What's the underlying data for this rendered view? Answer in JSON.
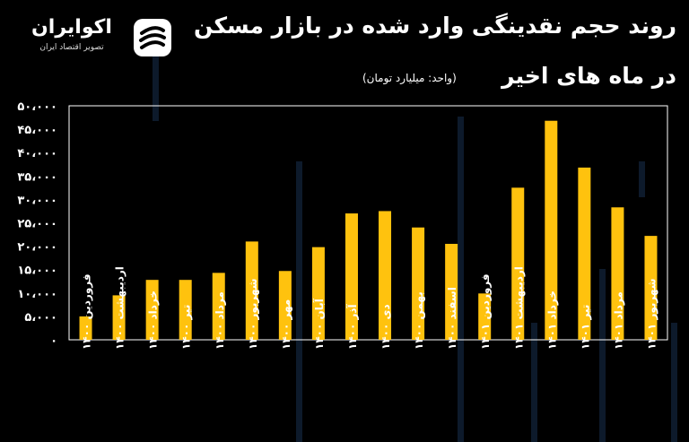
{
  "header": {
    "title_line1": "روند حجم نقدینگی وارد شده در بازار مسکن",
    "title_line2": "در ماه های اخیر",
    "unit_note": "(واحد: میلیارد تومان)"
  },
  "brand": {
    "name": "اکوایران",
    "tagline": "تصویر اقتصاد ایران",
    "logo_icon": "ecoiran-logo-icon"
  },
  "colors": {
    "background": "#000000",
    "bar": "#FFC20E",
    "text": "#FFFFFF",
    "decor": "#0d1a2b"
  },
  "chart_data": {
    "type": "bar",
    "categories": [
      "فروردین ۱۴۰۰",
      "اردیبهشت ۱۴۰۰",
      "خرداد ۱۴۰۰",
      "تیر ۱۴۰۰",
      "مرداد ۱۴۰۰",
      "شهریور ۱۴۰۰",
      "مهر ۱۴۰۰",
      "آبان ۱۴۰۰",
      "آذر ۱۴۰۰",
      "دی ۱۴۰۰",
      "بهمن ۱۴۰۰",
      "اسفند ۱۴۰۰",
      "فروردین ۱۴۰۱",
      "اردیبهشت ۱۴۰۱",
      "خرداد ۱۴۰۱",
      "تیر ۱۴۰۱",
      "مرداد ۱۴۰۱",
      "شهریور ۱۴۰۱"
    ],
    "values": [
      5000,
      9500,
      12800,
      12800,
      14300,
      21000,
      14700,
      19800,
      27000,
      27500,
      24000,
      20500,
      9900,
      32500,
      46800,
      36800,
      28300,
      22200
    ],
    "yticks": [
      "۰",
      "۵،۰۰۰",
      "۱۰،۰۰۰",
      "۱۵،۰۰۰",
      "۲۰،۰۰۰",
      "۲۵،۰۰۰",
      "۳۰،۰۰۰",
      "۳۵،۰۰۰",
      "۴۰،۰۰۰",
      "۴۵،۰۰۰",
      "۵۰،۰۰۰"
    ],
    "ylim": [
      0,
      50000
    ],
    "grid": false,
    "xlabel": "",
    "ylabel": "",
    "title": "روند حجم نقدینگی وارد شده در بازار مسکن در ماه های اخیر"
  }
}
